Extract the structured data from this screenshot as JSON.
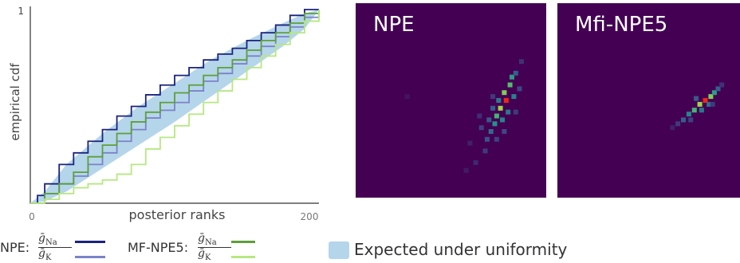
{
  "chart_data": [
    {
      "type": "line",
      "ylabel": "empirical cdf",
      "xlabel": "posterior ranks",
      "xlim": [
        0,
        200
      ],
      "ylim": [
        0,
        1
      ],
      "xticks": [
        "0",
        "200"
      ],
      "yticks": [
        "1"
      ],
      "band": {
        "label": "Expected under uniformity",
        "color": "#b5d5ea",
        "x": [
          0,
          10,
          25,
          50,
          75,
          100,
          125,
          150,
          175,
          190,
          200
        ],
        "lower": [
          0,
          0.01,
          0.06,
          0.18,
          0.3,
          0.42,
          0.55,
          0.68,
          0.81,
          0.9,
          1.0
        ],
        "upper": [
          0,
          0.06,
          0.2,
          0.36,
          0.5,
          0.62,
          0.74,
          0.84,
          0.93,
          0.98,
          1.0
        ]
      },
      "series": [
        {
          "color": "#1a237e",
          "x": [
            0,
            5,
            10,
            20,
            30,
            40,
            50,
            60,
            70,
            80,
            90,
            100,
            110,
            120,
            130,
            140,
            150,
            160,
            170,
            180,
            190,
            200
          ],
          "y": [
            0,
            0.04,
            0.1,
            0.2,
            0.26,
            0.32,
            0.38,
            0.45,
            0.5,
            0.56,
            0.61,
            0.66,
            0.7,
            0.74,
            0.77,
            0.8,
            0.84,
            0.88,
            0.92,
            0.97,
            1.0,
            1.0
          ]
        },
        {
          "color": "#7b83c8",
          "x": [
            0,
            10,
            20,
            30,
            40,
            50,
            60,
            70,
            80,
            90,
            100,
            110,
            120,
            130,
            140,
            150,
            160,
            170,
            180,
            190,
            200
          ],
          "y": [
            0,
            0.05,
            0.1,
            0.14,
            0.2,
            0.26,
            0.32,
            0.38,
            0.44,
            0.48,
            0.52,
            0.58,
            0.63,
            0.67,
            0.72,
            0.76,
            0.81,
            0.86,
            0.91,
            0.96,
            1.0
          ]
        },
        {
          "color": "#5e9e3a",
          "x": [
            0,
            10,
            20,
            30,
            40,
            50,
            60,
            70,
            80,
            90,
            100,
            110,
            120,
            130,
            140,
            150,
            160,
            170,
            180,
            190,
            200
          ],
          "y": [
            0,
            0.05,
            0.1,
            0.16,
            0.24,
            0.3,
            0.36,
            0.42,
            0.47,
            0.52,
            0.57,
            0.61,
            0.66,
            0.7,
            0.74,
            0.79,
            0.84,
            0.88,
            0.93,
            0.98,
            1.0
          ]
        },
        {
          "color": "#b6e880",
          "x": [
            0,
            10,
            20,
            30,
            40,
            50,
            60,
            70,
            80,
            90,
            100,
            110,
            120,
            130,
            140,
            150,
            160,
            170,
            180,
            190,
            200
          ],
          "y": [
            0,
            0.02,
            0.05,
            0.08,
            0.1,
            0.12,
            0.15,
            0.2,
            0.28,
            0.34,
            0.4,
            0.46,
            0.52,
            0.58,
            0.64,
            0.7,
            0.76,
            0.82,
            0.88,
            0.94,
            1.0
          ]
        }
      ]
    },
    {
      "type": "heatmap",
      "title": "NPE",
      "colormap": "viridis",
      "peak_color": "#e8291c",
      "cells": [
        {
          "x": 0.79,
          "y": 0.5,
          "v": 0.95
        },
        {
          "x": 0.76,
          "y": 0.54,
          "v": 0.85
        },
        {
          "x": 0.78,
          "y": 0.46,
          "v": 0.8
        },
        {
          "x": 0.81,
          "y": 0.42,
          "v": 0.7
        },
        {
          "x": 0.74,
          "y": 0.58,
          "v": 0.65
        },
        {
          "x": 0.73,
          "y": 0.62,
          "v": 0.5
        },
        {
          "x": 0.82,
          "y": 0.38,
          "v": 0.55
        },
        {
          "x": 0.77,
          "y": 0.6,
          "v": 0.45
        },
        {
          "x": 0.71,
          "y": 0.66,
          "v": 0.35
        },
        {
          "x": 0.8,
          "y": 0.56,
          "v": 0.4
        },
        {
          "x": 0.83,
          "y": 0.48,
          "v": 0.45
        },
        {
          "x": 0.75,
          "y": 0.5,
          "v": 0.4
        },
        {
          "x": 0.69,
          "y": 0.7,
          "v": 0.25
        },
        {
          "x": 0.72,
          "y": 0.54,
          "v": 0.3
        },
        {
          "x": 0.84,
          "y": 0.36,
          "v": 0.3
        },
        {
          "x": 0.68,
          "y": 0.76,
          "v": 0.18
        },
        {
          "x": 0.66,
          "y": 0.64,
          "v": 0.2
        },
        {
          "x": 0.86,
          "y": 0.44,
          "v": 0.22
        },
        {
          "x": 0.74,
          "y": 0.7,
          "v": 0.2
        },
        {
          "x": 0.63,
          "y": 0.82,
          "v": 0.12
        },
        {
          "x": 0.87,
          "y": 0.3,
          "v": 0.15
        },
        {
          "x": 0.65,
          "y": 0.58,
          "v": 0.14
        },
        {
          "x": 0.7,
          "y": 0.6,
          "v": 0.28
        },
        {
          "x": 0.78,
          "y": 0.66,
          "v": 0.22
        },
        {
          "x": 0.72,
          "y": 0.48,
          "v": 0.18
        },
        {
          "x": 0.6,
          "y": 0.72,
          "v": 0.1
        },
        {
          "x": 0.58,
          "y": 0.86,
          "v": 0.08
        },
        {
          "x": 0.84,
          "y": 0.56,
          "v": 0.18
        },
        {
          "x": 0.27,
          "y": 0.48,
          "v": 0.06
        }
      ]
    },
    {
      "type": "heatmap",
      "title": "Mfi-NPE5",
      "colormap": "viridis",
      "peak_color": "#e8291c",
      "cells": [
        {
          "x": 0.81,
          "y": 0.5,
          "v": 0.95
        },
        {
          "x": 0.78,
          "y": 0.52,
          "v": 0.85
        },
        {
          "x": 0.84,
          "y": 0.48,
          "v": 0.8
        },
        {
          "x": 0.75,
          "y": 0.55,
          "v": 0.65
        },
        {
          "x": 0.86,
          "y": 0.46,
          "v": 0.55
        },
        {
          "x": 0.72,
          "y": 0.57,
          "v": 0.45
        },
        {
          "x": 0.79,
          "y": 0.55,
          "v": 0.4
        },
        {
          "x": 0.83,
          "y": 0.52,
          "v": 0.38
        },
        {
          "x": 0.69,
          "y": 0.6,
          "v": 0.3
        },
        {
          "x": 0.88,
          "y": 0.44,
          "v": 0.3
        },
        {
          "x": 0.76,
          "y": 0.49,
          "v": 0.28
        },
        {
          "x": 0.66,
          "y": 0.62,
          "v": 0.18
        },
        {
          "x": 0.73,
          "y": 0.6,
          "v": 0.2
        },
        {
          "x": 0.9,
          "y": 0.42,
          "v": 0.15
        },
        {
          "x": 0.63,
          "y": 0.64,
          "v": 0.1
        },
        {
          "x": 0.85,
          "y": 0.52,
          "v": 0.18
        }
      ]
    }
  ],
  "panels": {
    "npe_title": "NPE",
    "mf_title": "Mfi-NPE5"
  },
  "legend": {
    "npe_label": "NPE:",
    "mf_label": "MF-NPE5:",
    "g_symbol": "ḡ",
    "na_sub": "Na",
    "k_sub": "K",
    "uniform_label": "Expected under uniformity"
  }
}
